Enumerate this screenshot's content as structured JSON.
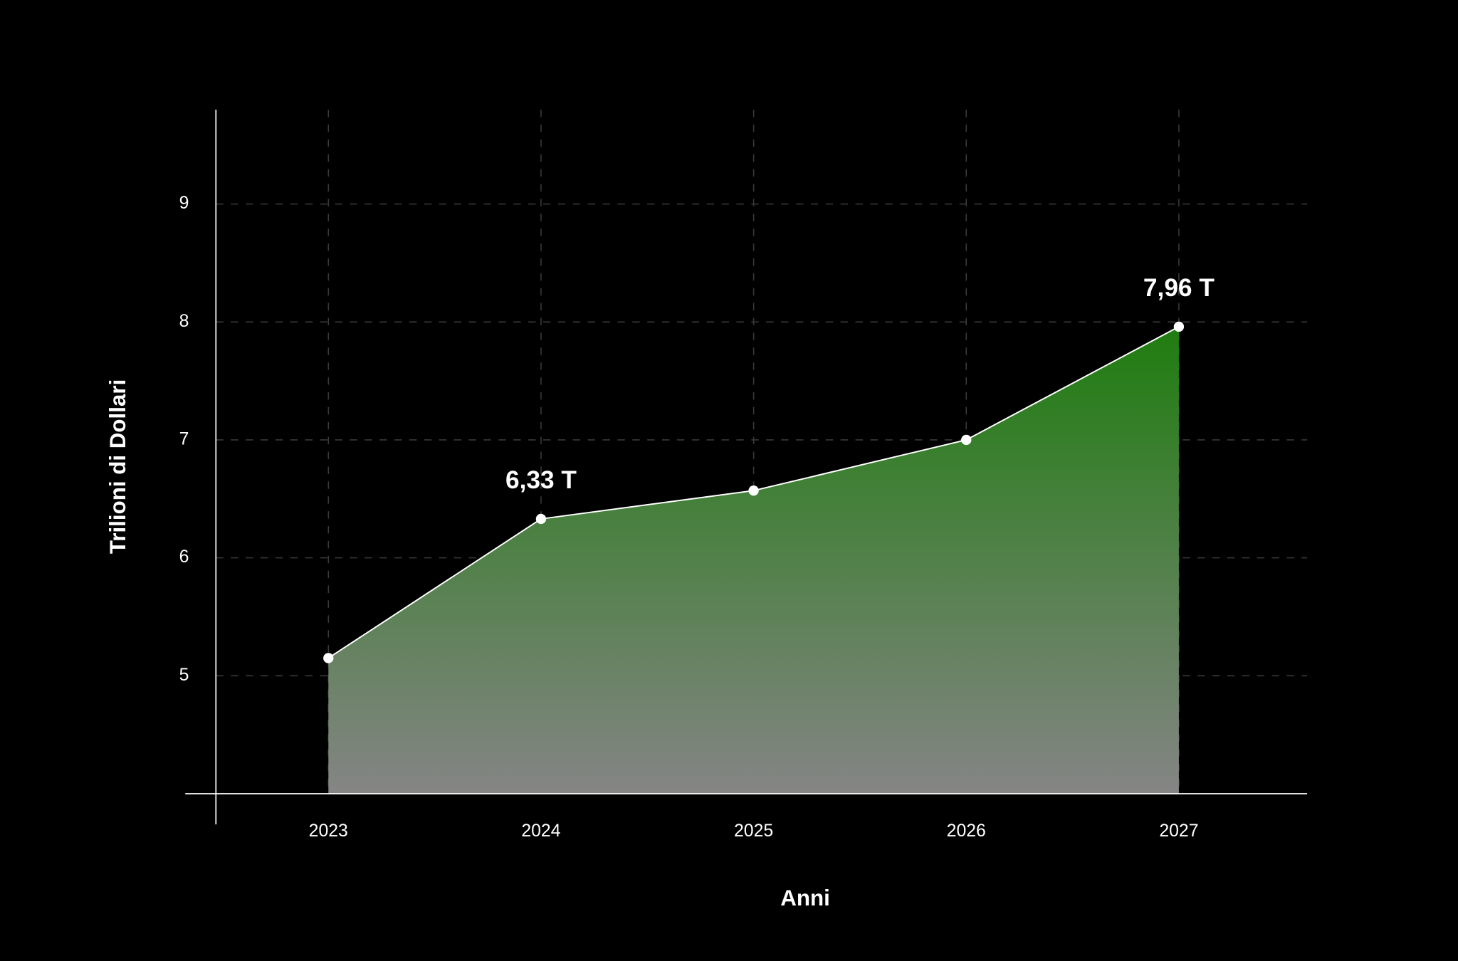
{
  "chart_data": {
    "type": "area",
    "xlabel": "Anni",
    "ylabel": "Trilioni di Dollari",
    "categories": [
      "2023",
      "2024",
      "2025",
      "2026",
      "2027"
    ],
    "values": [
      5.15,
      6.33,
      6.57,
      7.0,
      7.96
    ],
    "value_labels": [
      null,
      "6,33 T",
      null,
      null,
      "7,96 T"
    ],
    "ylim": [
      4,
      9.8
    ],
    "yticks": [
      5,
      6,
      7,
      8,
      9
    ],
    "grid": true,
    "line_color": "#ffffff",
    "fill_gradient": [
      "#1f7d0f",
      "#858585"
    ]
  }
}
